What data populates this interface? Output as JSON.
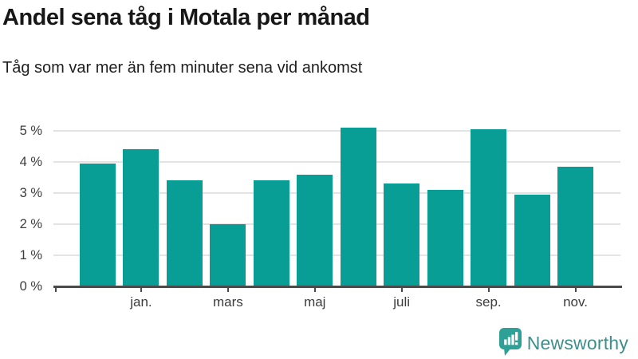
{
  "header": {
    "title": "Andel sena tåg i Motala per månad",
    "subtitle": "Tåg som var mer än fem minuter sena vid ankomst"
  },
  "chart_data": {
    "type": "bar",
    "title": "Andel sena tåg i Motala per månad",
    "subtitle": "Tåg som var mer än fem minuter sena vid ankomst",
    "unit": "%",
    "values": [
      3.95,
      4.4,
      3.4,
      2.0,
      3.4,
      3.6,
      5.1,
      3.3,
      3.1,
      5.05,
      2.95,
      3.85
    ],
    "x_tick_labels": [
      {
        "index": 1,
        "label": "jan."
      },
      {
        "index": 3,
        "label": "mars"
      },
      {
        "index": 5,
        "label": "maj"
      },
      {
        "index": 7,
        "label": "juli"
      },
      {
        "index": 9,
        "label": "sep."
      },
      {
        "index": 11,
        "label": "nov."
      }
    ],
    "y_ticks": [
      "0 %",
      "1 %",
      "2 %",
      "3 %",
      "4 %",
      "5 %"
    ],
    "ylim": [
      0,
      5.4
    ],
    "grid": "horizontal",
    "legend": "none"
  },
  "footer": {
    "brand": "Newsworthy"
  },
  "colors": {
    "bar": "#089e96",
    "axis": "#4a4a4a",
    "gridline": "#e3e3e3",
    "title_text": "#171717",
    "subtitle_text": "#1f1f1f",
    "axis_label": "#3d3d3d",
    "brand_icon": "#2fa096",
    "brand_text": "#3d8f8b",
    "background": "#ffffff"
  }
}
